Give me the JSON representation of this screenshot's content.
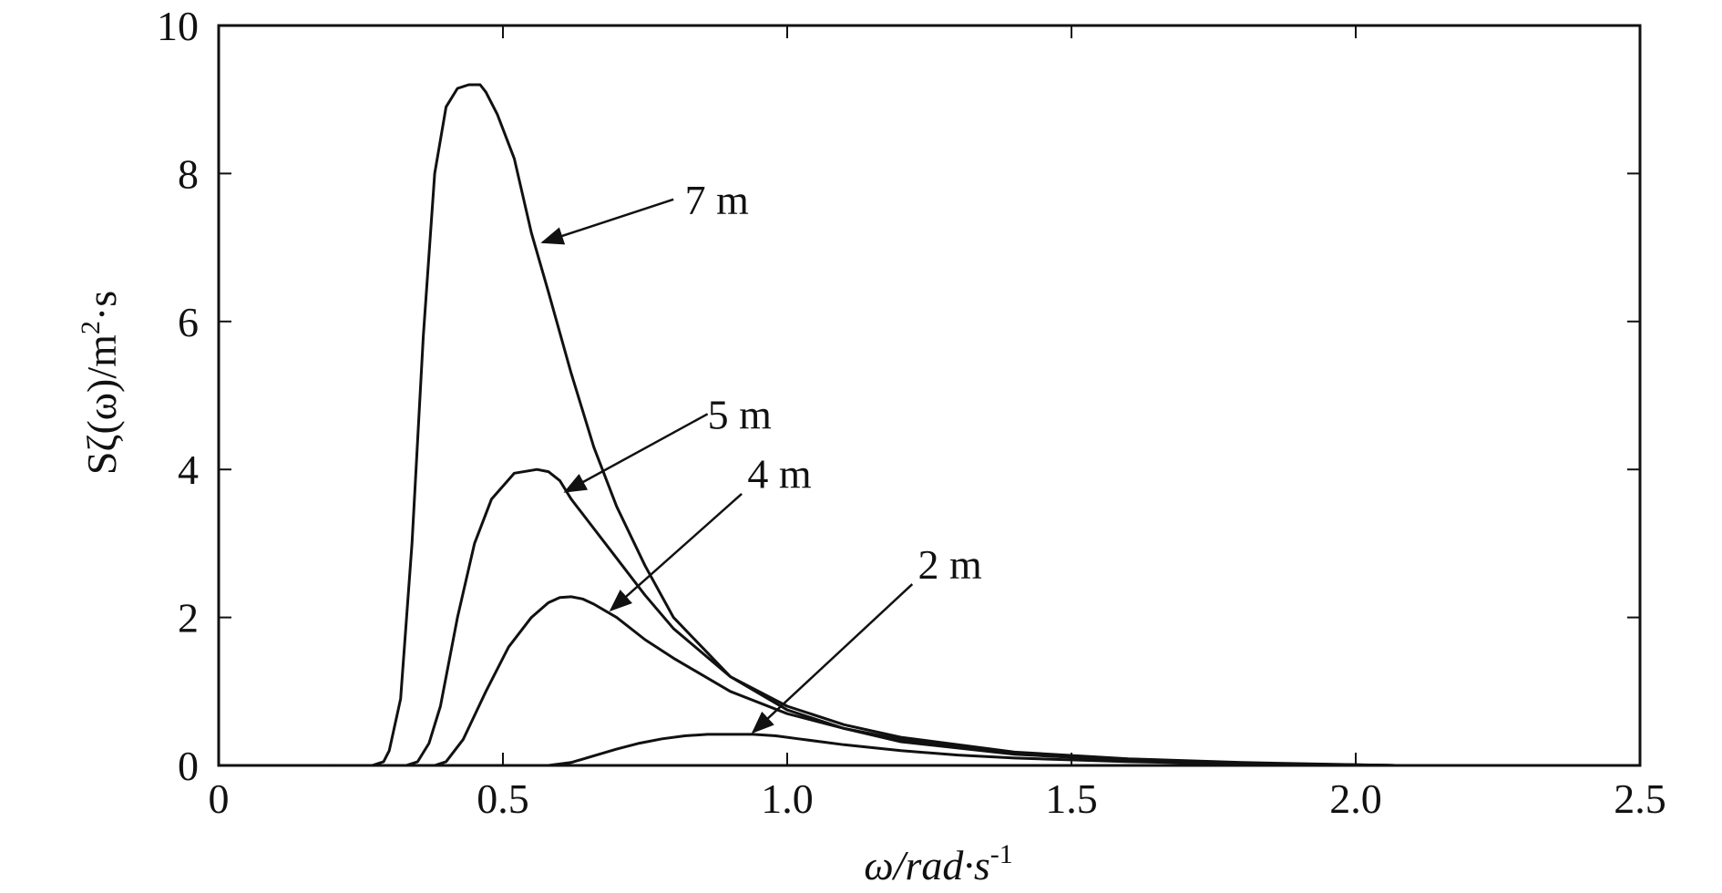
{
  "chart_data": {
    "type": "line",
    "xlabel": "ω/rad·s",
    "xlabel_sup": "-1",
    "ylabel_main": "Sζ(ω)/m",
    "ylabel_sup": "2",
    "ylabel_tail": "·s",
    "xlim": [
      0,
      2.5
    ],
    "ylim": [
      0,
      10
    ],
    "x_ticks": [
      0,
      0.5,
      1.0,
      1.5,
      2.0,
      2.5
    ],
    "x_tick_labels": [
      "0",
      "0.5",
      "1.0",
      "1.5",
      "2.0",
      "2.5"
    ],
    "y_ticks": [
      0,
      2,
      4,
      6,
      8,
      10
    ],
    "y_tick_labels": [
      "0",
      "2",
      "4",
      "6",
      "8",
      "10"
    ],
    "grid": false,
    "legend": "none",
    "line_color": "#111111",
    "series": [
      {
        "name": "7 m",
        "x": [
          0.2,
          0.27,
          0.29,
          0.3,
          0.32,
          0.34,
          0.36,
          0.38,
          0.4,
          0.42,
          0.44,
          0.46,
          0.47,
          0.49,
          0.52,
          0.55,
          0.58,
          0.62,
          0.66,
          0.7,
          0.75,
          0.8,
          0.9,
          1.0,
          1.1,
          1.2,
          1.4,
          1.6,
          1.8,
          2.07
        ],
        "y": [
          0,
          0,
          0.05,
          0.2,
          0.9,
          3.0,
          5.8,
          8.0,
          8.9,
          9.15,
          9.2,
          9.2,
          9.1,
          8.8,
          8.2,
          7.2,
          6.4,
          5.3,
          4.3,
          3.5,
          2.7,
          2.0,
          1.2,
          0.75,
          0.5,
          0.32,
          0.15,
          0.07,
          0.03,
          0.0
        ]
      },
      {
        "name": "5 m",
        "x": [
          0.2,
          0.33,
          0.35,
          0.37,
          0.39,
          0.42,
          0.45,
          0.48,
          0.52,
          0.56,
          0.58,
          0.6,
          0.62,
          0.65,
          0.7,
          0.75,
          0.8,
          0.9,
          1.0,
          1.1,
          1.2,
          1.4,
          1.6,
          1.8,
          2.07
        ],
        "y": [
          0,
          0,
          0.05,
          0.3,
          0.8,
          2.0,
          3.0,
          3.6,
          3.95,
          4.0,
          3.97,
          3.85,
          3.6,
          3.3,
          2.8,
          2.3,
          1.85,
          1.2,
          0.8,
          0.55,
          0.38,
          0.18,
          0.09,
          0.04,
          0.0
        ]
      },
      {
        "name": "4 m",
        "x": [
          0.2,
          0.38,
          0.4,
          0.43,
          0.47,
          0.51,
          0.55,
          0.58,
          0.6,
          0.62,
          0.64,
          0.66,
          0.7,
          0.75,
          0.8,
          0.9,
          1.0,
          1.1,
          1.2,
          1.4,
          1.6,
          1.8,
          2.07
        ],
        "y": [
          0,
          0,
          0.05,
          0.35,
          1.0,
          1.6,
          2.0,
          2.2,
          2.27,
          2.28,
          2.25,
          2.18,
          2.0,
          1.7,
          1.45,
          1.0,
          0.7,
          0.5,
          0.35,
          0.17,
          0.08,
          0.03,
          0.0
        ]
      },
      {
        "name": "2 m",
        "x": [
          0.2,
          0.58,
          0.62,
          0.66,
          0.7,
          0.74,
          0.78,
          0.82,
          0.86,
          0.9,
          0.94,
          0.98,
          1.02,
          1.1,
          1.2,
          1.3,
          1.4,
          1.6,
          1.8,
          2.07
        ],
        "y": [
          0,
          0,
          0.04,
          0.13,
          0.22,
          0.3,
          0.36,
          0.4,
          0.42,
          0.42,
          0.42,
          0.4,
          0.36,
          0.28,
          0.2,
          0.14,
          0.1,
          0.05,
          0.02,
          0.0
        ]
      }
    ],
    "annotations": [
      {
        "text": "7 m",
        "label_x": 0.82,
        "label_y": 7.65,
        "arrow_from_x": 0.8,
        "arrow_from_y": 7.65,
        "arrow_to_x": 0.57,
        "arrow_to_y": 7.07
      },
      {
        "text": "5 m",
        "label_x": 0.86,
        "label_y": 4.75,
        "arrow_from_x": 0.86,
        "arrow_from_y": 4.75,
        "arrow_to_x": 0.61,
        "arrow_to_y": 3.7
      },
      {
        "text": "4 m",
        "label_x": 0.93,
        "label_y": 3.95,
        "arrow_from_x": 0.92,
        "arrow_from_y": 3.67,
        "arrow_to_x": 0.69,
        "arrow_to_y": 2.1
      },
      {
        "text": "2 m",
        "label_x": 1.23,
        "label_y": 2.72,
        "arrow_from_x": 1.22,
        "arrow_from_y": 2.45,
        "arrow_to_x": 0.94,
        "arrow_to_y": 0.45
      }
    ]
  }
}
